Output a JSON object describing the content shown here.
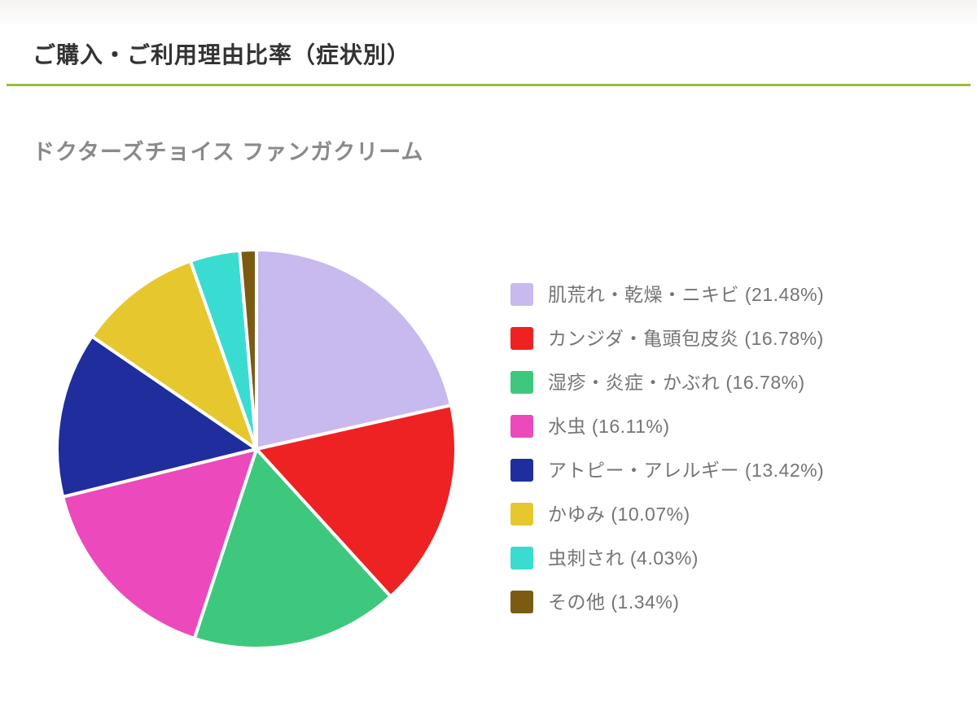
{
  "page": {
    "title": "ご購入・ご利用理由比率（症状別）",
    "accent_color": "#98be3c"
  },
  "chart_data": {
    "type": "pie",
    "title": "ドクターズチョイス ファンガクリーム",
    "legend_position": "right",
    "start_angle_deg": 0,
    "direction": "clockwise",
    "unit": "%",
    "legend_label_format": "{label} ({value}%)",
    "slices": [
      {
        "label": "肌荒れ・乾燥・ニキビ",
        "value": 21.48,
        "color": "#c8baee"
      },
      {
        "label": "カンジダ・亀頭包皮炎",
        "value": 16.78,
        "color": "#ee2222"
      },
      {
        "label": "湿疹・炎症・かぶれ",
        "value": 16.78,
        "color": "#3ec87d"
      },
      {
        "label": "水虫",
        "value": 16.11,
        "color": "#eb49bc"
      },
      {
        "label": "アトピー・アレルギー",
        "value": 13.42,
        "color": "#202d9d"
      },
      {
        "label": "かゆみ",
        "value": 10.07,
        "color": "#e6c72e"
      },
      {
        "label": "虫刺され",
        "value": 4.03,
        "color": "#3adcd1"
      },
      {
        "label": "その他",
        "value": 1.34,
        "color": "#7b5b11"
      }
    ]
  }
}
